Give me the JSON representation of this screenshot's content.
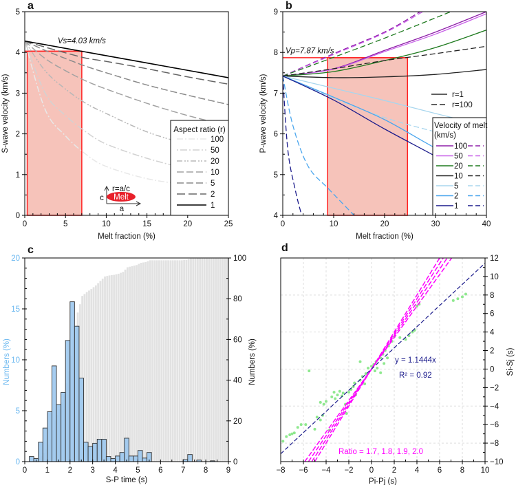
{
  "chart_data": [
    {
      "panel": "a",
      "type": "line",
      "xlabel": "Melt fraction (%)",
      "ylabel": "S-wave velocity (km/s)",
      "xlim": [
        0,
        25
      ],
      "ylim": [
        0,
        5
      ],
      "xticks": [
        "0",
        "5",
        "10",
        "15",
        "20",
        "25"
      ],
      "yticks": [
        "0",
        "1",
        "2",
        "3",
        "4",
        "5"
      ],
      "annotation": "Vs=4.03 km/s",
      "reference_value": 4.03,
      "shaded_range": [
        0.3,
        7
      ],
      "legend": {
        "title": "Aspect ratio (r)",
        "position": "bottom-right"
      },
      "inset": {
        "ratio_label": "r=a/c",
        "melt_label": "Melt",
        "c_label": "c",
        "a_label": "a",
        "melt_color": "#e8202a"
      },
      "x": [
        0,
        2.5,
        5,
        7.5,
        10,
        15,
        20,
        25
      ],
      "series": [
        {
          "name": "100",
          "color": "#e8e8e8",
          "values": [
            4.28,
            2.6,
            1.95,
            1.5,
            1.2,
            0.9,
            0.75,
            0.65
          ]
        },
        {
          "name": "50",
          "color": "#d2d2d2",
          "values": [
            4.28,
            3.0,
            2.45,
            2.05,
            1.75,
            1.4,
            1.15,
            1.0
          ]
        },
        {
          "name": "20",
          "color": "#b8b8b8",
          "values": [
            4.28,
            3.55,
            3.1,
            2.75,
            2.5,
            2.05,
            1.75,
            1.55
          ]
        },
        {
          "name": "10",
          "color": "#a2a2a2",
          "values": [
            4.28,
            3.85,
            3.55,
            3.3,
            3.1,
            2.75,
            2.45,
            2.2
          ]
        },
        {
          "name": "5",
          "color": "#8a8a8a",
          "values": [
            4.28,
            4.05,
            3.85,
            3.66,
            3.5,
            3.2,
            2.95,
            2.72
          ]
        },
        {
          "name": "2",
          "color": "#666666",
          "values": [
            4.28,
            4.13,
            3.99,
            3.86,
            3.78,
            3.6,
            3.4,
            3.22
          ]
        },
        {
          "name": "1",
          "color": "#000000",
          "values": [
            4.28,
            4.19,
            4.1,
            4.01,
            3.92,
            3.74,
            3.56,
            3.38
          ]
        }
      ]
    },
    {
      "panel": "b",
      "type": "line",
      "xlabel": "Melt fraction (%)",
      "ylabel": "P-wave velocity (km/s)",
      "xlim": [
        0,
        40
      ],
      "ylim": [
        4,
        9
      ],
      "xticks": [
        "0",
        "10",
        "20",
        "30",
        "40"
      ],
      "yticks": [
        "4",
        "5",
        "6",
        "7",
        "8",
        "9"
      ],
      "annotation": "Vp=7.87 km/s",
      "reference_value": 7.87,
      "shaded_range": [
        8.8,
        24.5
      ],
      "style_legend": [
        "r=1",
        "r=100"
      ],
      "legend": {
        "title": "Velocity of melt",
        "subtitle": "(km/s)",
        "position": "bottom-right"
      },
      "series": [
        {
          "name": "100",
          "color": "#8e1ea8",
          "solid": {
            "x": [
              0,
              10,
              20,
              30,
              40
            ],
            "y": [
              7.42,
              7.6,
              8.05,
              8.5,
              9.0
            ]
          },
          "dashed": {
            "x": [
              0,
              10,
              20,
              27
            ],
            "y": [
              7.42,
              7.97,
              8.5,
              9.0
            ]
          }
        },
        {
          "name": "50",
          "color": "#c860e8",
          "solid": {
            "x": [
              0,
              10,
              20,
              30,
              40
            ],
            "y": [
              7.42,
              7.59,
              8.02,
              8.45,
              8.95
            ]
          },
          "dashed": {
            "x": [
              0,
              10,
              20,
              27.5
            ],
            "y": [
              7.42,
              7.95,
              8.48,
              9.0
            ]
          }
        },
        {
          "name": "20",
          "color": "#1e7a1e",
          "solid": {
            "x": [
              0,
              10,
              20,
              30,
              40
            ],
            "y": [
              7.42,
              7.53,
              7.8,
              8.12,
              8.55
            ]
          },
          "dashed": {
            "x": [
              0,
              10,
              20,
              33
            ],
            "y": [
              7.42,
              7.88,
              8.35,
              9.0
            ]
          }
        },
        {
          "name": "10",
          "color": "#222222",
          "solid": {
            "x": [
              0,
              10,
              20,
              30,
              40
            ],
            "y": [
              7.42,
              7.38,
              7.4,
              7.46,
              7.58
            ]
          },
          "dashed": {
            "x": [
              0,
              10,
              20,
              30,
              40
            ],
            "y": [
              7.42,
              7.6,
              7.8,
              7.97,
              8.15
            ]
          }
        },
        {
          "name": "5",
          "color": "#a8d6ee",
          "solid": {
            "x": [
              0,
              10,
              20,
              30,
              40
            ],
            "y": [
              7.42,
              7.12,
              6.82,
              6.5,
              6.2
            ]
          },
          "dashed": {
            "x": [
              0,
              10,
              20,
              30,
              40
            ],
            "y": [
              7.42,
              6.88,
              6.4,
              6.05,
              5.75
            ]
          }
        },
        {
          "name": "2",
          "color": "#4aa6ee",
          "solid": {
            "x": [
              0,
              10,
              20,
              30,
              40
            ],
            "y": [
              7.42,
              6.9,
              6.35,
              5.65,
              5.02
            ]
          },
          "dashed": {
            "x": [
              0,
              2,
              5,
              9,
              14
            ],
            "y": [
              7.42,
              6.2,
              5.2,
              4.65,
              4.0
            ]
          }
        },
        {
          "name": "1",
          "color": "#1c1c8c",
          "solid": {
            "x": [
              0,
              10,
              20,
              30,
              40
            ],
            "y": [
              7.42,
              6.83,
              6.12,
              5.45,
              4.76
            ]
          },
          "dashed": {
            "x": [
              0,
              1,
              2.5,
              3.6
            ],
            "y": [
              7.42,
              5.6,
              4.6,
              4.05
            ]
          }
        }
      ]
    },
    {
      "panel": "c",
      "type": "bar",
      "xlabel": "S-P time (s)",
      "ylabel_left": "Numbers (%)",
      "ylabel_right": "Numbers (%)",
      "xlim": [
        0,
        9
      ],
      "ylim_left": [
        0,
        20
      ],
      "ylim_right": [
        0,
        100
      ],
      "xticks": [
        "0",
        "1",
        "2",
        "3",
        "4",
        "5",
        "6",
        "7",
        "8",
        "9"
      ],
      "yticks_left": [
        "0",
        "5",
        "10",
        "15",
        "20"
      ],
      "yticks_right": [
        "0",
        "20",
        "40",
        "60",
        "80",
        "100"
      ],
      "bin_width": 0.2,
      "bin_start": 0.2,
      "colors": {
        "hist": "#9cc8ee",
        "cumulative": "#e2e2e2",
        "left_axis": "#6bb8f0"
      },
      "values": [
        0.5,
        0.3,
        1.9,
        3.3,
        4.9,
        9.4,
        5.6,
        6.8,
        11.9,
        15.7,
        13.3,
        8.2,
        1.9,
        1.5,
        1.8,
        2.2,
        2.2,
        0.5,
        0.3,
        0.55,
        0.9,
        2.3,
        0.55,
        0.55,
        1.1,
        0.35,
        0.9,
        0,
        0,
        0,
        0,
        0,
        0,
        0,
        0.2,
        0.7,
        0,
        0.15,
        0,
        0,
        0.08
      ]
    },
    {
      "panel": "d",
      "type": "scatter",
      "xlabel": "Pi-Pj (s)",
      "ylabel": "Si-Sj (s)",
      "xlim": [
        -8,
        10
      ],
      "ylim": [
        -10,
        12
      ],
      "xticks": [
        "−8",
        "−6",
        "−4",
        "−2",
        "0",
        "2",
        "4",
        "6",
        "8",
        "10"
      ],
      "yticks": [
        "−10",
        "−8",
        "−6",
        "−4",
        "−2",
        "0",
        "2",
        "4",
        "6",
        "8",
        "10",
        "12"
      ],
      "fit_label": "y = 1.1444x",
      "r2_label": "R² = 0.92",
      "fit_slope": 1.1444,
      "ratio_label": "Ratio = 1.7, 1.8, 1.9, 2.0",
      "ratios": [
        1.7,
        1.8,
        1.9,
        2.0
      ],
      "colors": {
        "points": "#8ee88e",
        "fit": "#1c1c8c",
        "ratio": "#ff00ff"
      },
      "points": [
        [
          -7.8,
          -7.8
        ],
        [
          -7.5,
          -7.3
        ],
        [
          -7.2,
          -7.1
        ],
        [
          -7,
          -7
        ],
        [
          -6.8,
          -6.9
        ],
        [
          -6.5,
          -6.3
        ],
        [
          -6.2,
          -6
        ],
        [
          -5.8,
          -6
        ],
        [
          -5.5,
          -0.2
        ],
        [
          -5,
          -6.5
        ],
        [
          -4.8,
          -5.2
        ],
        [
          -4.5,
          -5.5
        ],
        [
          -4.3,
          -5
        ],
        [
          -4.5,
          -3.6
        ],
        [
          -4.2,
          -3.8
        ],
        [
          -4,
          -3.5
        ],
        [
          -3.7,
          -6.6
        ],
        [
          -3.5,
          -3
        ],
        [
          -3.2,
          -3.2
        ],
        [
          -3,
          -2.8
        ],
        [
          -2.8,
          -2.4
        ],
        [
          -2.5,
          -2.6
        ],
        [
          -2.3,
          -3.8
        ],
        [
          -2.2,
          -4.8
        ],
        [
          -2,
          -2.5
        ],
        [
          -1.8,
          -2.2
        ],
        [
          -1.5,
          -1.5
        ],
        [
          -1.4,
          -2.8
        ],
        [
          -1.2,
          -2.2
        ],
        [
          -1,
          -1.2
        ],
        [
          -0.8,
          -0.8
        ],
        [
          -0.5,
          -0.5
        ],
        [
          -0.3,
          0.1
        ],
        [
          0,
          0.3
        ],
        [
          0.2,
          0.5
        ],
        [
          0.4,
          0.8
        ],
        [
          0.5,
          0.1
        ],
        [
          0.8,
          1.2
        ],
        [
          1,
          1.6
        ],
        [
          1.2,
          2
        ],
        [
          1.5,
          2.5
        ],
        [
          1.8,
          3
        ],
        [
          2,
          3.5
        ],
        [
          2.5,
          3.4
        ],
        [
          3,
          3.2
        ],
        [
          3.3,
          3.6
        ],
        [
          3.6,
          4
        ],
        [
          3.8,
          4.2
        ],
        [
          4,
          6.8
        ],
        [
          4.2,
          7
        ],
        [
          7.2,
          7.4
        ],
        [
          7.6,
          7.6
        ],
        [
          8,
          7.8
        ],
        [
          8.3,
          8.1
        ],
        [
          -1,
          0.8
        ],
        [
          0.8,
          -0.4
        ],
        [
          1.1,
          0.6
        ],
        [
          -0.6,
          -1.6
        ],
        [
          0.3,
          -0.2
        ],
        [
          -1.6,
          -1.9
        ],
        [
          1.4,
          1.2
        ],
        [
          -2.6,
          -2.9
        ],
        [
          -3.3,
          -2.5
        ]
      ]
    }
  ]
}
